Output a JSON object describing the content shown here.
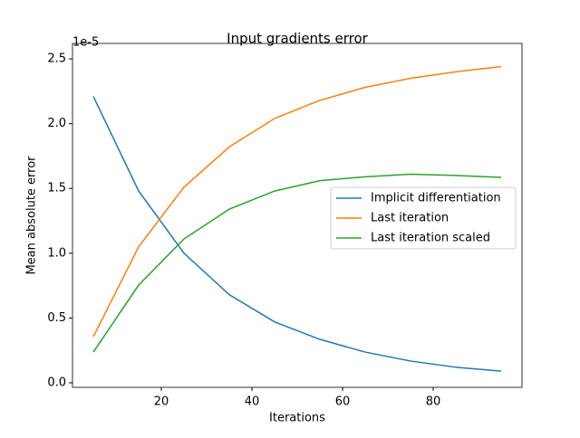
{
  "chart_data": {
    "type": "line",
    "title": "Input gradients error",
    "x_label": "Iterations",
    "y_label": "Mean absolute error",
    "y_offset_label": "1e-5",
    "x": [
      5,
      15,
      25,
      35,
      45,
      55,
      65,
      75,
      85,
      95
    ],
    "series": [
      {
        "name": "Implicit differentiation",
        "color": "#1f77b4",
        "values": [
          2.21,
          1.48,
          1.0,
          0.68,
          0.47,
          0.335,
          0.237,
          0.168,
          0.12,
          0.09
        ]
      },
      {
        "name": "Last iteration",
        "color": "#ff7f0e",
        "values": [
          0.356,
          1.05,
          1.51,
          1.82,
          2.04,
          2.18,
          2.28,
          2.35,
          2.4,
          2.44
        ]
      },
      {
        "name": "Last iteration scaled",
        "color": "#2ca02c",
        "values": [
          0.237,
          0.754,
          1.11,
          1.34,
          1.48,
          1.56,
          1.59,
          1.61,
          1.6,
          1.585
        ]
      }
    ],
    "xlim": [
      0.4,
      99.6
    ],
    "xticks": [
      20,
      40,
      60,
      80
    ],
    "ylim": [
      -0.035,
      2.619
    ],
    "yticks": [
      {
        "value": 0,
        "label": "0.0"
      },
      0.5,
      {
        "value": 1,
        "label": "1.0"
      },
      1.5,
      {
        "value": 2,
        "label": "2.0"
      },
      2.5
    ],
    "legend": "center right"
  }
}
